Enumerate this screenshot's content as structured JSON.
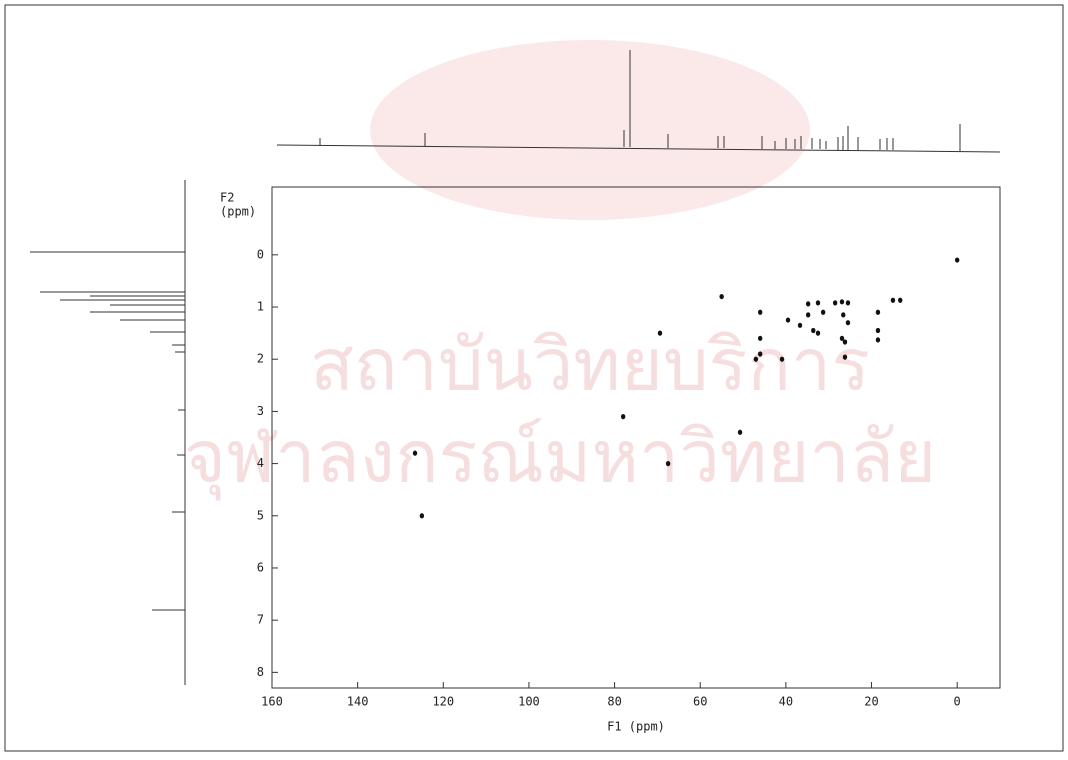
{
  "chart_data": {
    "type": "scatter",
    "x_label": "F1 (ppm)",
    "y_label_lines": [
      "F2",
      "(ppm)"
    ],
    "watermark_lines": [
      "สถาบันวิทยบริการ",
      "จุฬาลงกรณ์มหาวิทยาลัย"
    ],
    "x": [
      0,
      55,
      69.4,
      78,
      67.5,
      50.7,
      126.6,
      125,
      46,
      46,
      46,
      47,
      40.9,
      39.5,
      36.7,
      34.8,
      33.6,
      32.5,
      34.8,
      32.5,
      31.3,
      28.5,
      26.9,
      25.5,
      26.6,
      25.5,
      26.9,
      26.2,
      26.2,
      18.5,
      18.5,
      18.5,
      15,
      13.3
    ],
    "values": [
      0.1,
      0.8,
      1.5,
      3.1,
      4.0,
      3.4,
      3.8,
      5.0,
      1.6,
      1.9,
      1.1,
      2.0,
      2.0,
      1.25,
      1.35,
      1.15,
      1.45,
      1.5,
      0.94,
      0.92,
      1.1,
      0.92,
      0.9,
      0.92,
      1.15,
      1.3,
      1.6,
      1.67,
      1.96,
      1.1,
      1.45,
      1.63,
      0.87,
      0.87
    ],
    "color": "#111111",
    "xlim": [
      160,
      -10
    ],
    "xticks": [
      160,
      140,
      120,
      100,
      80,
      60,
      40,
      20,
      0
    ],
    "ylim": [
      -1.3,
      8.3
    ],
    "yticks": [
      0,
      1,
      2,
      3,
      4,
      5,
      6,
      7,
      8
    ]
  }
}
